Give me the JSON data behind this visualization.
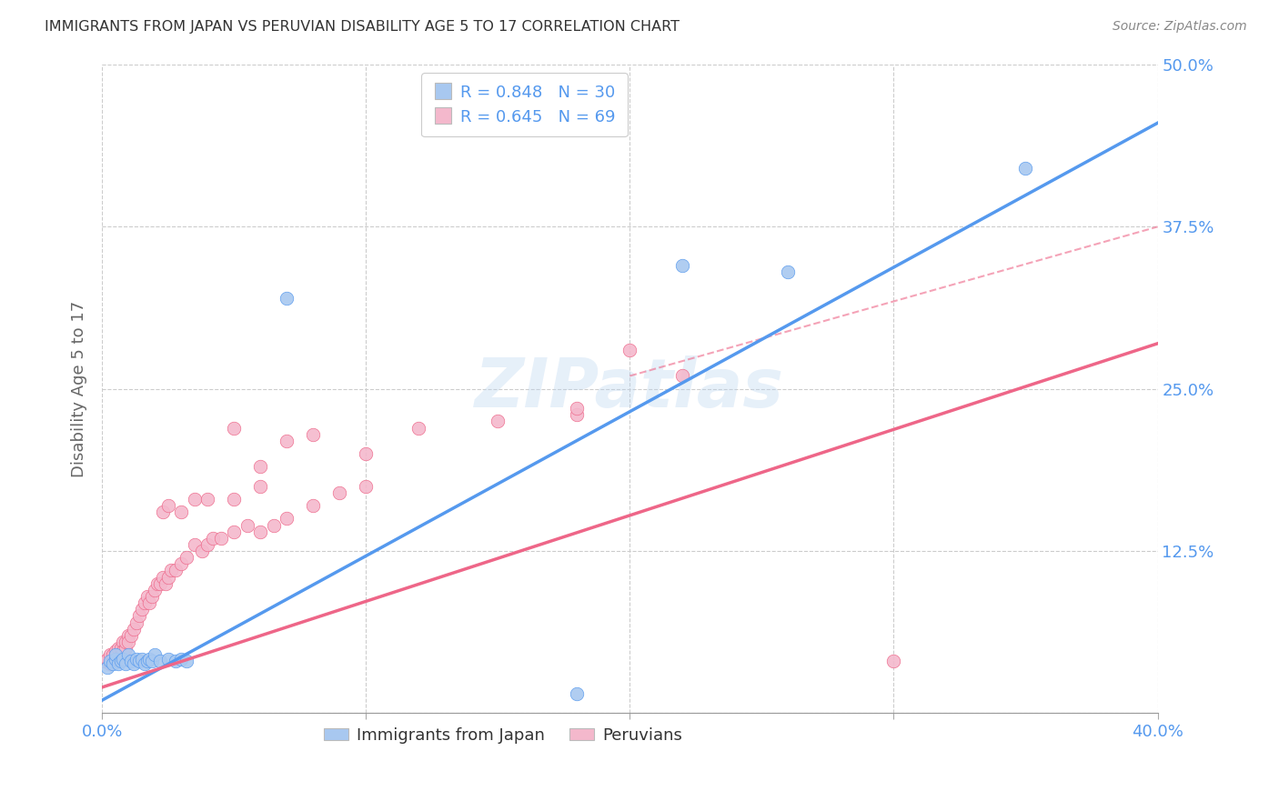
{
  "title": "IMMIGRANTS FROM JAPAN VS PERUVIAN DISABILITY AGE 5 TO 17 CORRELATION CHART",
  "source": "Source: ZipAtlas.com",
  "ylabel": "Disability Age 5 to 17",
  "xlim": [
    0.0,
    0.4
  ],
  "ylim": [
    0.0,
    0.5
  ],
  "xticks": [
    0.0,
    0.1,
    0.2,
    0.3,
    0.4
  ],
  "xtick_labels": [
    "0.0%",
    "",
    "",
    "",
    "40.0%"
  ],
  "ytick_labels": [
    "",
    "12.5%",
    "25.0%",
    "37.5%",
    "50.0%"
  ],
  "yticks": [
    0.0,
    0.125,
    0.25,
    0.375,
    0.5
  ],
  "japan_color": "#a8c8f0",
  "peru_color": "#f4b8cc",
  "japan_line_color": "#5599ee",
  "peru_line_color": "#ee6688",
  "japan_R": 0.848,
  "japan_N": 30,
  "peru_R": 0.645,
  "peru_N": 69,
  "legend_label_japan": "Immigrants from Japan",
  "legend_label_peru": "Peruvians",
  "watermark_text": "ZIPatlas",
  "japan_scatter_x": [
    0.002,
    0.003,
    0.004,
    0.005,
    0.005,
    0.006,
    0.007,
    0.008,
    0.009,
    0.01,
    0.011,
    0.012,
    0.013,
    0.014,
    0.015,
    0.016,
    0.017,
    0.018,
    0.019,
    0.02,
    0.022,
    0.025,
    0.028,
    0.03,
    0.032,
    0.07,
    0.22,
    0.26,
    0.35,
    0.18
  ],
  "japan_scatter_y": [
    0.035,
    0.04,
    0.038,
    0.042,
    0.045,
    0.038,
    0.04,
    0.042,
    0.038,
    0.045,
    0.04,
    0.038,
    0.042,
    0.04,
    0.042,
    0.038,
    0.04,
    0.042,
    0.04,
    0.045,
    0.04,
    0.042,
    0.04,
    0.042,
    0.04,
    0.32,
    0.345,
    0.34,
    0.42,
    0.015
  ],
  "peru_scatter_x": [
    0.001,
    0.002,
    0.003,
    0.003,
    0.004,
    0.004,
    0.005,
    0.005,
    0.006,
    0.006,
    0.007,
    0.007,
    0.008,
    0.008,
    0.009,
    0.009,
    0.01,
    0.01,
    0.011,
    0.012,
    0.013,
    0.014,
    0.015,
    0.016,
    0.017,
    0.018,
    0.019,
    0.02,
    0.021,
    0.022,
    0.023,
    0.024,
    0.025,
    0.026,
    0.028,
    0.03,
    0.032,
    0.035,
    0.038,
    0.04,
    0.042,
    0.045,
    0.05,
    0.055,
    0.06,
    0.065,
    0.07,
    0.08,
    0.09,
    0.1,
    0.05,
    0.06,
    0.07,
    0.08,
    0.1,
    0.12,
    0.15,
    0.18,
    0.2,
    0.22,
    0.023,
    0.025,
    0.03,
    0.035,
    0.04,
    0.05,
    0.06,
    0.3,
    0.18
  ],
  "peru_scatter_y": [
    0.04,
    0.042,
    0.045,
    0.038,
    0.042,
    0.045,
    0.04,
    0.048,
    0.042,
    0.05,
    0.045,
    0.05,
    0.055,
    0.048,
    0.05,
    0.055,
    0.06,
    0.055,
    0.06,
    0.065,
    0.07,
    0.075,
    0.08,
    0.085,
    0.09,
    0.085,
    0.09,
    0.095,
    0.1,
    0.1,
    0.105,
    0.1,
    0.105,
    0.11,
    0.11,
    0.115,
    0.12,
    0.13,
    0.125,
    0.13,
    0.135,
    0.135,
    0.14,
    0.145,
    0.14,
    0.145,
    0.15,
    0.16,
    0.17,
    0.175,
    0.22,
    0.19,
    0.21,
    0.215,
    0.2,
    0.22,
    0.225,
    0.23,
    0.28,
    0.26,
    0.155,
    0.16,
    0.155,
    0.165,
    0.165,
    0.165,
    0.175,
    0.04,
    0.235
  ],
  "background_color": "#ffffff",
  "grid_color": "#cccccc",
  "title_color": "#333333",
  "axis_label_color": "#666666",
  "tick_color": "#5599ee",
  "legend_text_color": "#5599ee",
  "japan_line_x": [
    0.0,
    0.4
  ],
  "japan_line_y": [
    0.01,
    0.455
  ],
  "peru_line_x": [
    0.0,
    0.4
  ],
  "peru_line_y": [
    0.02,
    0.285
  ],
  "dash_line_x": [
    0.2,
    0.4
  ],
  "dash_line_y": [
    0.26,
    0.375
  ]
}
